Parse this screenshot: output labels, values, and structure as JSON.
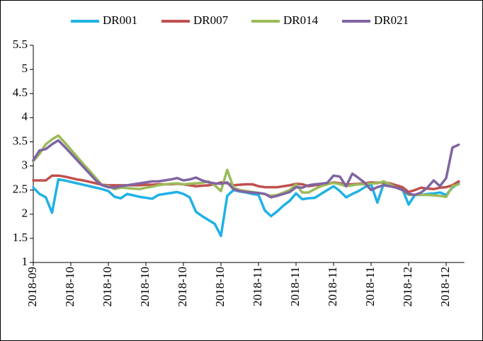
{
  "chart_data": {
    "type": "line",
    "categories": [
      "2018-09",
      null,
      null,
      null,
      null,
      null,
      "2018-10",
      null,
      null,
      null,
      null,
      null,
      "2018-10",
      null,
      null,
      null,
      null,
      null,
      "2018-10",
      null,
      null,
      null,
      null,
      null,
      "2018-10",
      null,
      null,
      null,
      null,
      null,
      "2018-10",
      null,
      null,
      null,
      null,
      null,
      "2018-11",
      null,
      null,
      null,
      null,
      null,
      "2018-11",
      null,
      null,
      null,
      null,
      null,
      "2018-11",
      null,
      null,
      null,
      null,
      null,
      "2018-11",
      null,
      null,
      null,
      null,
      null,
      "2018-12",
      null,
      null,
      null,
      null,
      null,
      "2018-12",
      null,
      null
    ],
    "series": [
      {
        "name": "DR001",
        "color": "#1fb1e6",
        "values": [
          2.55,
          2.42,
          2.35,
          2.03,
          2.72,
          2.7,
          2.67,
          2.64,
          2.61,
          2.58,
          2.55,
          2.52,
          2.48,
          2.36,
          2.33,
          2.42,
          2.39,
          2.36,
          2.34,
          2.32,
          2.4,
          2.42,
          2.44,
          2.46,
          2.42,
          2.35,
          2.05,
          1.96,
          1.88,
          1.8,
          1.55,
          2.38,
          2.5,
          2.47,
          2.45,
          2.42,
          2.4,
          2.08,
          1.96,
          2.06,
          2.18,
          2.28,
          2.43,
          2.31,
          2.33,
          2.34,
          2.42,
          2.5,
          2.58,
          2.48,
          2.35,
          2.42,
          2.48,
          2.56,
          2.62,
          2.24,
          2.63,
          2.62,
          2.58,
          2.52,
          2.2,
          2.4,
          2.4,
          2.42,
          2.43,
          2.45,
          2.4,
          2.55,
          2.65
        ]
      },
      {
        "name": "DR007",
        "color": "#c0504d",
        "values": [
          2.7,
          2.7,
          2.7,
          2.8,
          2.8,
          2.78,
          2.75,
          2.72,
          2.7,
          2.67,
          2.64,
          2.61,
          2.6,
          2.6,
          2.6,
          2.6,
          2.6,
          2.6,
          2.61,
          2.61,
          2.62,
          2.62,
          2.62,
          2.63,
          2.62,
          2.6,
          2.58,
          2.59,
          2.6,
          2.62,
          2.66,
          2.64,
          2.6,
          2.61,
          2.62,
          2.62,
          2.58,
          2.56,
          2.56,
          2.56,
          2.58,
          2.6,
          2.63,
          2.62,
          2.58,
          2.6,
          2.61,
          2.62,
          2.66,
          2.64,
          2.62,
          2.62,
          2.63,
          2.64,
          2.66,
          2.65,
          2.66,
          2.64,
          2.6,
          2.56,
          2.46,
          2.5,
          2.55,
          2.53,
          2.52,
          2.55,
          2.56,
          2.6,
          2.68
        ]
      },
      {
        "name": "DR014",
        "color": "#9bbb59",
        "values": [
          3.1,
          3.25,
          3.45,
          3.55,
          3.63,
          3.49,
          3.34,
          3.19,
          3.04,
          2.9,
          2.75,
          2.6,
          2.58,
          2.52,
          2.55,
          2.54,
          2.53,
          2.52,
          2.55,
          2.57,
          2.6,
          2.62,
          2.63,
          2.64,
          2.62,
          2.63,
          2.64,
          2.65,
          2.68,
          2.6,
          2.48,
          2.92,
          2.55,
          2.5,
          2.48,
          2.46,
          2.44,
          2.42,
          2.38,
          2.4,
          2.45,
          2.5,
          2.62,
          2.45,
          2.45,
          2.52,
          2.58,
          2.62,
          2.65,
          2.62,
          2.58,
          2.6,
          2.62,
          2.62,
          2.64,
          2.64,
          2.68,
          2.62,
          2.55,
          2.5,
          2.4,
          2.4,
          2.4,
          2.4,
          2.39,
          2.38,
          2.36,
          2.58,
          2.62
        ]
      },
      {
        "name": "DR021",
        "color": "#8064a2",
        "values": [
          3.12,
          3.32,
          3.35,
          3.45,
          3.53,
          3.4,
          3.26,
          3.12,
          2.98,
          2.84,
          2.7,
          2.6,
          2.56,
          2.55,
          2.58,
          2.6,
          2.62,
          2.64,
          2.66,
          2.68,
          2.68,
          2.7,
          2.72,
          2.75,
          2.7,
          2.72,
          2.76,
          2.7,
          2.66,
          2.64,
          2.63,
          2.66,
          2.52,
          2.48,
          2.46,
          2.45,
          2.44,
          2.42,
          2.35,
          2.38,
          2.42,
          2.46,
          2.56,
          2.55,
          2.6,
          2.62,
          2.63,
          2.65,
          2.8,
          2.78,
          2.58,
          2.84,
          2.75,
          2.65,
          2.5,
          2.56,
          2.6,
          2.58,
          2.55,
          2.5,
          2.42,
          2.4,
          2.45,
          2.55,
          2.7,
          2.58,
          2.75,
          3.38,
          3.44
        ]
      }
    ],
    "ylim": [
      1,
      5.5
    ],
    "yticks": [
      1,
      1.5,
      2,
      2.5,
      3,
      3.5,
      4,
      4.5,
      5,
      5.5
    ],
    "grid": false,
    "legend": "top"
  }
}
